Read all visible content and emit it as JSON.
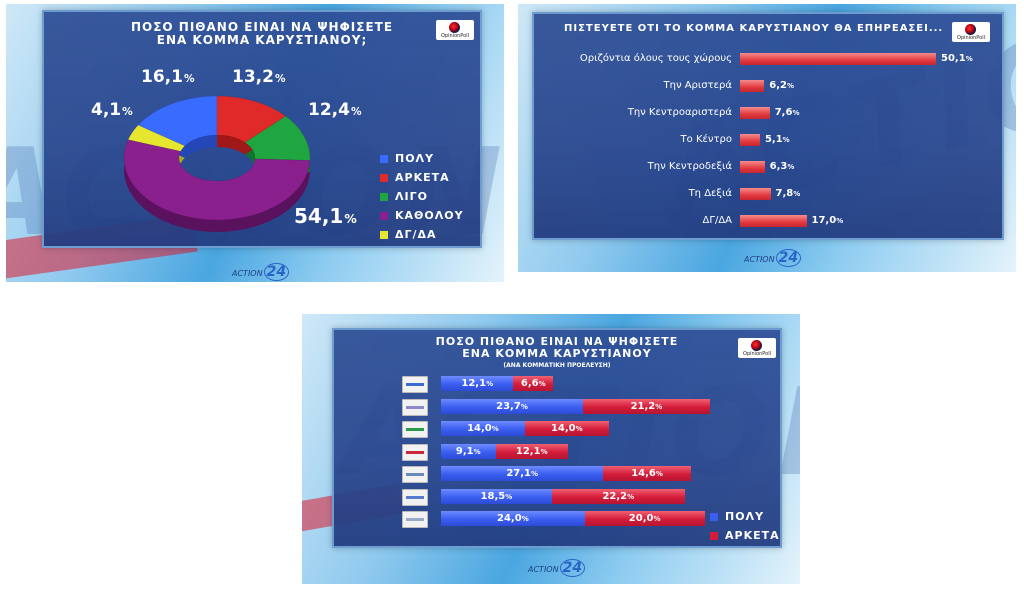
{
  "brand": {
    "channel": "ACTION",
    "channel_num": "24",
    "pollster": "OpinionPoll"
  },
  "panel1": {
    "title_line1": "ΠΟΣΟ ΠΙΘΑΝΟ ΕΙΝΑΙ ΝΑ ΨΗΦΙΣΕΤΕ",
    "title_line2": "ΕΝΑ ΚΟΜΜΑ ΚΑΡΥΣΤΙΑΝΟΥ;",
    "pct_sign": "%",
    "slices": [
      {
        "label": "ΠΟΛΥ",
        "value": "16,1"
      },
      {
        "label": "ΑΡΚΕΤΑ",
        "value": "13,2"
      },
      {
        "label": "ΛΙΓΟ",
        "value": "12,4"
      },
      {
        "label": "ΚΑΘΟΛΟΥ",
        "value": "54,1"
      },
      {
        "label": "ΔΓ/ΔΑ",
        "value": "4,1"
      }
    ]
  },
  "panel2": {
    "title": "ΠΙΣΤΕΥΕΤΕ ΟΤΙ ΤΟ ΚΟΜΜΑ ΚΑΡΥΣΤΙΑΝΟΥ ΘΑ ΕΠΗΡΕΑΣΕΙ...",
    "pct_sign": "%",
    "rows": [
      {
        "label": "Οριζόντια όλους τους χώρους",
        "value": "50,1"
      },
      {
        "label": "Την Αριστερά",
        "value": "6,2"
      },
      {
        "label": "Την Κεντροαριστερά",
        "value": "7,6"
      },
      {
        "label": "Το Κέντρο",
        "value": "5,1"
      },
      {
        "label": "Την Κεντροδεξιά",
        "value": "6,3"
      },
      {
        "label": "Τη Δεξιά",
        "value": "7,8"
      },
      {
        "label": "ΔΓ/ΔΑ",
        "value": "17,0"
      }
    ]
  },
  "panel3": {
    "title_line1": "ΠΟΣΟ ΠΙΘΑΝΟ ΕΙΝΑΙ ΝΑ ΨΗΦΙΣΕΤΕ",
    "title_line2": "ΕΝΑ ΚΟΜΜΑ ΚΑΡΥΣΤΙΑΝΟΥ",
    "subtitle": "(ΑΝΑ ΚΟΜΜΑΤΙΚΗ ΠΡΟΕΛΕΥΣΗ)",
    "pct_sign": "%",
    "legend": [
      {
        "label": "ΠΟΛΥ"
      },
      {
        "label": "ΑΡΚΕΤΑ"
      }
    ],
    "rows": [
      {
        "polu": "12,1",
        "arketa": "6,6"
      },
      {
        "polu": "23,7",
        "arketa": "21,2"
      },
      {
        "polu": "14,0",
        "arketa": "14,0"
      },
      {
        "polu": "9,1",
        "arketa": "12,1"
      },
      {
        "polu": "27,1",
        "arketa": "14,6"
      },
      {
        "polu": "18,5",
        "arketa": "22,2"
      },
      {
        "polu": "24,0",
        "arketa": "20,0"
      }
    ]
  },
  "colors": {
    "polu": "#3a5ef0",
    "arketa": "#d31c3a",
    "ligo": "#1fa640",
    "katholou": "#7a1a7e",
    "dgda": "#e6e630",
    "bar_red": "#e23a3e"
  },
  "chart_data": [
    {
      "type": "pie",
      "title": "ΠΟΣΟ ΠΙΘΑΝΟ ΕΙΝΑΙ ΝΑ ΨΗΦΙΣΕΤΕ ΕΝΑ ΚΟΜΜΑ ΚΑΡΥΣΤΙΑΝΟΥ;",
      "categories": [
        "ΠΟΛΥ",
        "ΑΡΚΕΤΑ",
        "ΛΙΓΟ",
        "ΚΑΘΟΛΟΥ",
        "ΔΓ/ΔΑ"
      ],
      "values": [
        16.1,
        13.2,
        12.4,
        54.1,
        4.1
      ],
      "legend": "right"
    },
    {
      "type": "bar",
      "orientation": "horizontal",
      "title": "ΠΙΣΤΕΥΕΤΕ ΟΤΙ ΤΟ ΚΟΜΜΑ ΚΑΡΥΣΤΙΑΝΟΥ ΘΑ ΕΠΗΡΕΑΣΕΙ...",
      "categories": [
        "Οριζόντια όλους τους χώρους",
        "Την Αριστερά",
        "Την Κεντροαριστερά",
        "Το Κέντρο",
        "Την Κεντροδεξιά",
        "Τη Δεξιά",
        "ΔΓ/ΔΑ"
      ],
      "values": [
        50.1,
        6.2,
        7.6,
        5.1,
        6.3,
        7.8,
        17.0
      ],
      "xlim": [
        0,
        50.1
      ]
    },
    {
      "type": "bar",
      "orientation": "horizontal",
      "stacked": true,
      "title": "ΠΟΣΟ ΠΙΘΑΝΟ ΕΙΝΑΙ ΝΑ ΨΗΦΙΣΕΤΕ ΕΝΑ ΚΟΜΜΑ ΚΑΡΥΣΤΙΑΝΟΥ",
      "subtitle": "(ΑΝΑ ΚΟΜΜΑΤΙΚΗ ΠΡΟΕΛΕΥΣΗ)",
      "series": [
        {
          "name": "ΠΟΛΥ",
          "values": [
            12.1,
            23.7,
            14.0,
            9.1,
            27.1,
            18.5,
            24.0
          ]
        },
        {
          "name": "ΑΡΚΕΤΑ",
          "values": [
            6.6,
            21.2,
            14.0,
            12.1,
            14.6,
            22.2,
            20.0
          ]
        }
      ],
      "legend": "bottom-right"
    }
  ]
}
